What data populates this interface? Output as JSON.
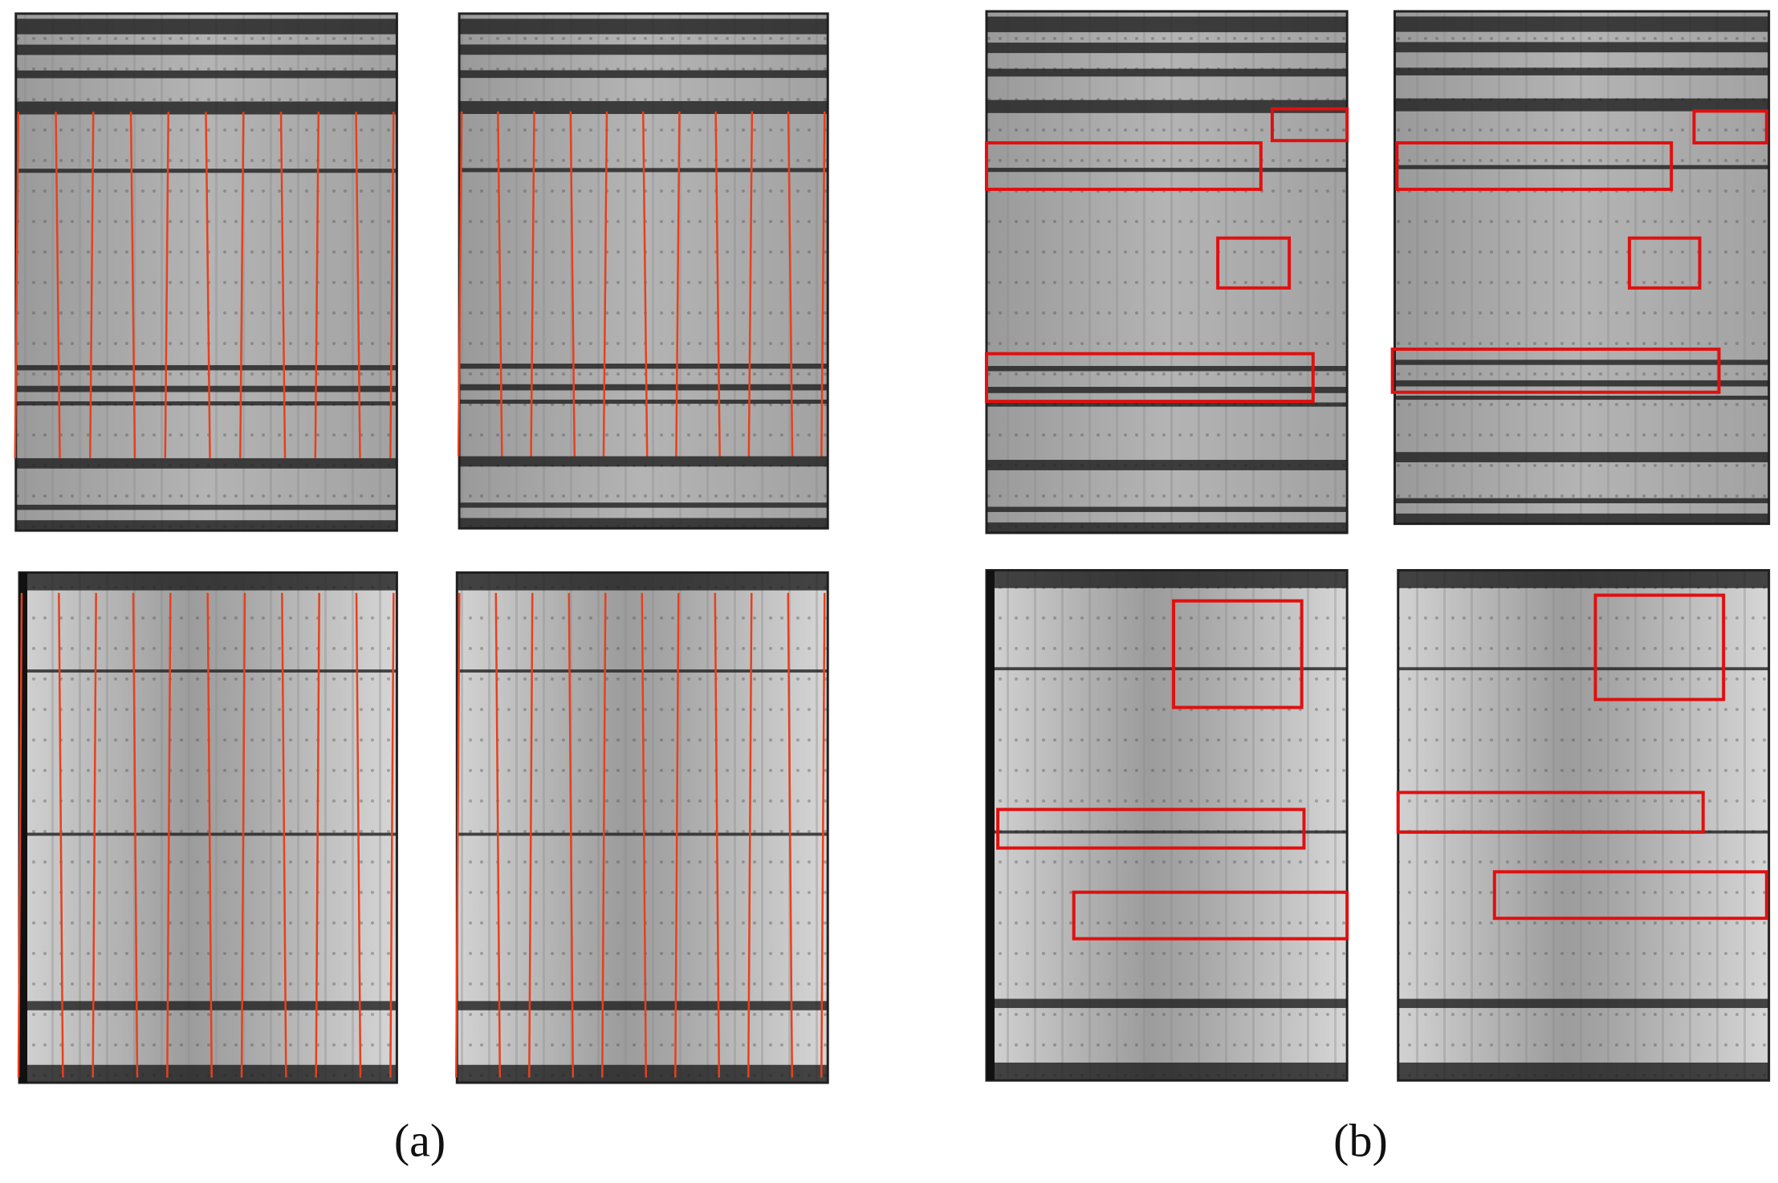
{
  "figure": {
    "captions": [
      "(a)",
      "(b)"
    ]
  }
}
